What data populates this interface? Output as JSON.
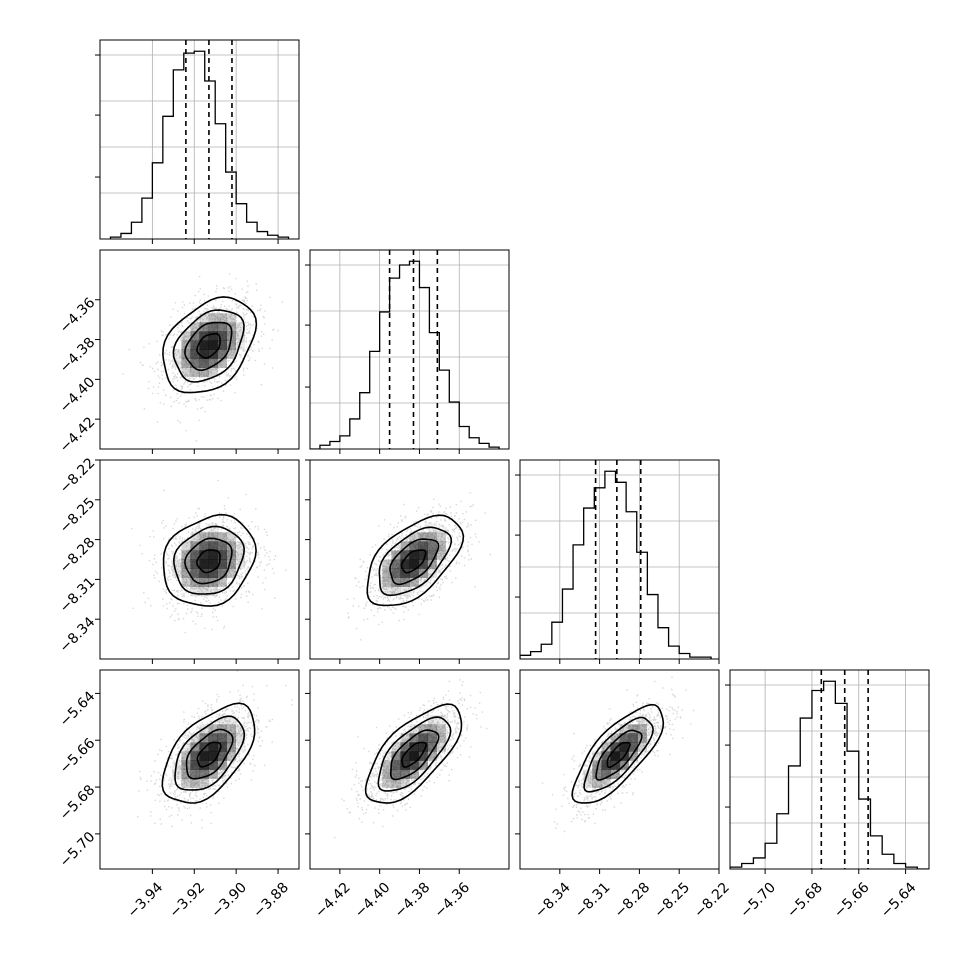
{
  "chart_data": {
    "type": "corner",
    "n_params": 4,
    "grid": true,
    "colors": {
      "line": "#000000",
      "grid": "#b0b0b0",
      "scatter": "#c8c8c8",
      "density": "#000000"
    },
    "params": [
      {
        "range": [
          -3.965,
          -3.87
        ],
        "ticks": [
          "-3.94",
          "-3.92",
          "-3.90",
          "-3.88"
        ],
        "tick_values": [
          -3.94,
          -3.92,
          -3.9,
          -3.88
        ],
        "mean": -3.913,
        "sigma": 0.011,
        "quantiles": [
          -3.924,
          -3.913,
          -3.902
        ],
        "hist": {
          "edges": [
            -3.96,
            -3.955,
            -3.95,
            -3.945,
            -3.94,
            -3.935,
            -3.93,
            -3.925,
            -3.92,
            -3.915,
            -3.91,
            -3.905,
            -3.9,
            -3.895,
            -3.89,
            -3.885,
            -3.88,
            -3.875
          ],
          "counts": [
            0.01,
            0.03,
            0.09,
            0.22,
            0.41,
            0.66,
            0.91,
            1.0,
            1.01,
            0.85,
            0.62,
            0.36,
            0.19,
            0.09,
            0.04,
            0.02,
            0.01
          ]
        }
      },
      {
        "range": [
          -4.435,
          -4.335
        ],
        "ticks": [
          "-4.42",
          "-4.40",
          "-4.38",
          "-4.36"
        ],
        "tick_values": [
          -4.42,
          -4.4,
          -4.38,
          -4.36
        ],
        "mean": -4.383,
        "sigma": 0.012,
        "quantiles": [
          -4.395,
          -4.383,
          -4.371
        ],
        "hist": {
          "edges": [
            -4.435,
            -4.43,
            -4.425,
            -4.42,
            -4.415,
            -4.41,
            -4.405,
            -4.4,
            -4.395,
            -4.39,
            -4.385,
            -4.38,
            -4.375,
            -4.37,
            -4.365,
            -4.36,
            -4.355,
            -4.35,
            -4.345,
            -4.34
          ],
          "counts": [
            0.0,
            0.02,
            0.04,
            0.07,
            0.16,
            0.3,
            0.52,
            0.73,
            0.91,
            0.98,
            1.0,
            0.86,
            0.62,
            0.42,
            0.25,
            0.12,
            0.06,
            0.03,
            0.01
          ]
        }
      },
      {
        "range": [
          -8.37,
          -8.22
        ],
        "ticks": [
          "-8.34",
          "-8.31",
          "-8.28",
          "-8.25",
          "-8.22"
        ],
        "tick_values": [
          -8.34,
          -8.31,
          -8.28,
          -8.25,
          -8.22
        ],
        "mean": -8.296,
        "sigma": 0.017,
        "quantiles": [
          -8.313,
          -8.297,
          -8.279
        ],
        "hist": {
          "edges": [
            -8.37,
            -8.362,
            -8.354,
            -8.346,
            -8.338,
            -8.33,
            -8.322,
            -8.314,
            -8.306,
            -8.298,
            -8.29,
            -8.282,
            -8.274,
            -8.266,
            -8.258,
            -8.25,
            -8.242,
            -8.234,
            -8.226
          ],
          "counts": [
            0.02,
            0.04,
            0.08,
            0.2,
            0.38,
            0.62,
            0.82,
            0.93,
            1.02,
            0.96,
            0.8,
            0.58,
            0.35,
            0.17,
            0.07,
            0.03,
            0.01,
            0.01
          ]
        }
      },
      {
        "range": [
          -5.715,
          -5.63
        ],
        "ticks": [
          "-5.70",
          "-5.68",
          "-5.66",
          "-5.64"
        ],
        "tick_values": [
          -5.7,
          -5.68,
          -5.66,
          -5.64
        ],
        "mean": -5.666,
        "sigma": 0.0105,
        "quantiles": [
          -5.676,
          -5.666,
          -5.656
        ],
        "hist": {
          "edges": [
            -5.715,
            -5.71,
            -5.705,
            -5.7,
            -5.695,
            -5.69,
            -5.685,
            -5.68,
            -5.675,
            -5.67,
            -5.665,
            -5.66,
            -5.655,
            -5.65,
            -5.645,
            -5.64,
            -5.635,
            -5.63
          ],
          "counts": [
            0.01,
            0.03,
            0.06,
            0.14,
            0.3,
            0.56,
            0.82,
            0.97,
            1.02,
            0.9,
            0.64,
            0.38,
            0.18,
            0.08,
            0.03,
            0.01,
            0.0
          ]
        }
      }
    ],
    "correlations": [
      {
        "row": 1,
        "col": 0,
        "rho": 0.35
      },
      {
        "row": 2,
        "col": 0,
        "rho": 0.18
      },
      {
        "row": 2,
        "col": 1,
        "rho": 0.55
      },
      {
        "row": 3,
        "col": 0,
        "rho": 0.55
      },
      {
        "row": 3,
        "col": 1,
        "rho": 0.68
      },
      {
        "row": 3,
        "col": 2,
        "rho": 0.75
      }
    ],
    "contour_levels_sigma": [
      0.5,
      1.0,
      1.5,
      2.0
    ]
  }
}
